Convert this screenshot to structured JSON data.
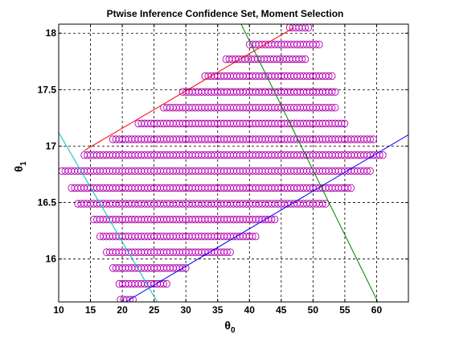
{
  "chart_data": {
    "type": "scatter",
    "title": "Ptwise Inference Confidence Set, Moment Selection",
    "xlabel": {
      "base": "θ",
      "sub": "0"
    },
    "ylabel": {
      "base": "θ",
      "sub": "1"
    },
    "xlim": [
      10,
      65
    ],
    "ylim": [
      15.62,
      18.08
    ],
    "xticks": [
      10,
      15,
      20,
      25,
      30,
      35,
      40,
      45,
      50,
      55,
      60
    ],
    "yticks": [
      16,
      16.5,
      17,
      17.5,
      18
    ],
    "ytick_labels": [
      "16",
      "16.5",
      "17",
      "17.5",
      "18"
    ],
    "grid": true,
    "marker_color": "#b200b2",
    "rows": [
      {
        "y": 18.05,
        "x_start": 46.3,
        "x_end": 49.5
      },
      {
        "y": 17.9,
        "x_start": 40.0,
        "x_end": 51.0
      },
      {
        "y": 17.77,
        "x_start": 36.3,
        "x_end": 49.0
      },
      {
        "y": 17.62,
        "x_start": 33.0,
        "x_end": 53.0
      },
      {
        "y": 17.48,
        "x_start": 29.5,
        "x_end": 53.5
      },
      {
        "y": 17.34,
        "x_start": 26.5,
        "x_end": 53.5
      },
      {
        "y": 17.2,
        "x_start": 22.5,
        "x_end": 55.0
      },
      {
        "y": 17.06,
        "x_start": 18.5,
        "x_end": 59.5
      },
      {
        "y": 16.92,
        "x_start": 14.0,
        "x_end": 61.0
      },
      {
        "y": 16.78,
        "x_start": 10.5,
        "x_end": 59.0
      },
      {
        "y": 16.63,
        "x_start": 12.0,
        "x_end": 56.0
      },
      {
        "y": 16.49,
        "x_start": 13.0,
        "x_end": 52.0
      },
      {
        "y": 16.35,
        "x_start": 15.5,
        "x_end": 44.0
      },
      {
        "y": 16.2,
        "x_start": 16.5,
        "x_end": 41.0
      },
      {
        "y": 16.06,
        "x_start": 17.5,
        "x_end": 37.0
      },
      {
        "y": 15.92,
        "x_start": 18.5,
        "x_end": 30.0
      },
      {
        "y": 15.78,
        "x_start": 19.5,
        "x_end": 27.0
      },
      {
        "y": 15.64,
        "x_start": 19.7,
        "x_end": 22.0
      }
    ],
    "lines": [
      {
        "color": "#ff0000",
        "x1": 14.0,
        "y1": 16.96,
        "x2": 47.0,
        "y2": 18.05
      },
      {
        "color": "#0000ff",
        "x1": 20.5,
        "y1": 15.62,
        "x2": 65.0,
        "y2": 17.1
      },
      {
        "color": "#008000",
        "x1": 38.7,
        "y1": 18.08,
        "x2": 60.2,
        "y2": 15.62
      },
      {
        "color": "#00bfbf",
        "x1": 10.0,
        "y1": 17.12,
        "x2": 25.5,
        "y2": 15.62
      }
    ]
  }
}
